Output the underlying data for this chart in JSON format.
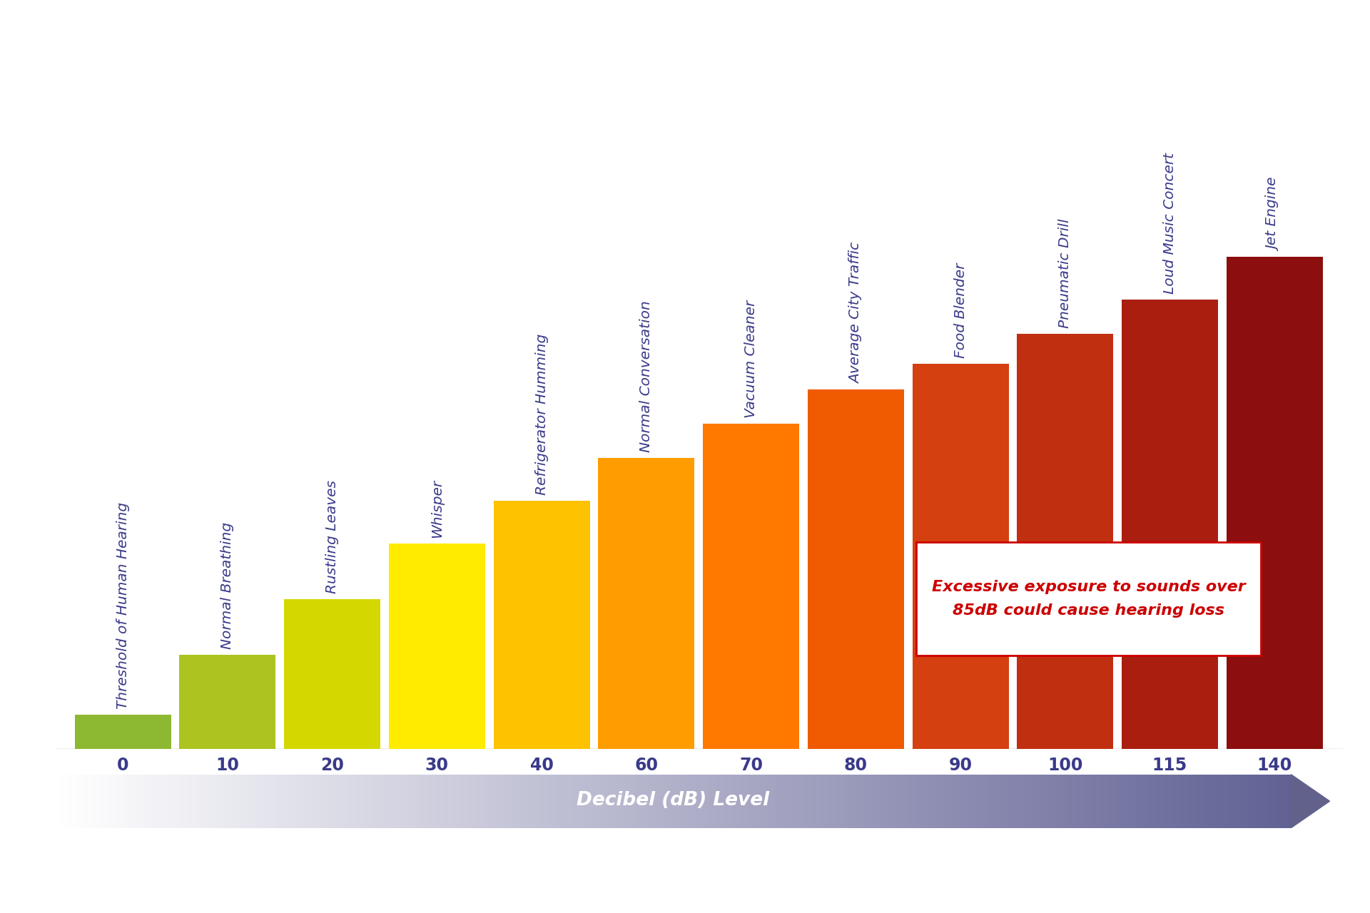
{
  "sounds": [
    {
      "label": "Threshold of Human Hearing",
      "db": 0,
      "bar_height": 0.8,
      "color": "#8db832"
    },
    {
      "label": "Normal Breathing",
      "db": 10,
      "bar_height": 2.2,
      "color": "#adc420"
    },
    {
      "label": "Rustling Leaves",
      "db": 20,
      "bar_height": 3.5,
      "color": "#d4d800"
    },
    {
      "label": "Whisper",
      "db": 30,
      "bar_height": 4.8,
      "color": "#ffeb00"
    },
    {
      "label": "Refrigerator Humming",
      "db": 40,
      "bar_height": 5.8,
      "color": "#ffc200"
    },
    {
      "label": "Normal Conversation",
      "db": 60,
      "bar_height": 6.8,
      "color": "#ff9c00"
    },
    {
      "label": "Vacuum Cleaner",
      "db": 70,
      "bar_height": 7.6,
      "color": "#ff7800"
    },
    {
      "label": "Average City Traffic",
      "db": 80,
      "bar_height": 8.4,
      "color": "#f05a00"
    },
    {
      "label": "Food Blender",
      "db": 90,
      "bar_height": 9.0,
      "color": "#d44010"
    },
    {
      "label": "Pneumatic Drill",
      "db": 100,
      "bar_height": 9.7,
      "color": "#c03010"
    },
    {
      "label": "Loud Music Concert",
      "db": 115,
      "bar_height": 10.5,
      "color": "#aa1e10"
    },
    {
      "label": "Jet Engine",
      "db": 140,
      "bar_height": 11.5,
      "color": "#8c0e0e"
    }
  ],
  "tick_labels": [
    "0",
    "10",
    "20",
    "30",
    "40",
    "60",
    "70",
    "80",
    "90",
    "100",
    "115",
    "140"
  ],
  "tick_positions": [
    0,
    1,
    2,
    3,
    4,
    5,
    6,
    7,
    8,
    9,
    10,
    11
  ],
  "xlabel": "Decibel (dB) Level",
  "annotation_text": "Excessive exposure to sounds over\n85dB could cause hearing loss",
  "annotation_color": "#cc0000",
  "background_color": "#ffffff",
  "bar_width": 0.92,
  "text_color": "#3a3a8a",
  "label_fontsize": 14.5,
  "tick_fontsize": 17,
  "arrow_label_fontsize": 19
}
